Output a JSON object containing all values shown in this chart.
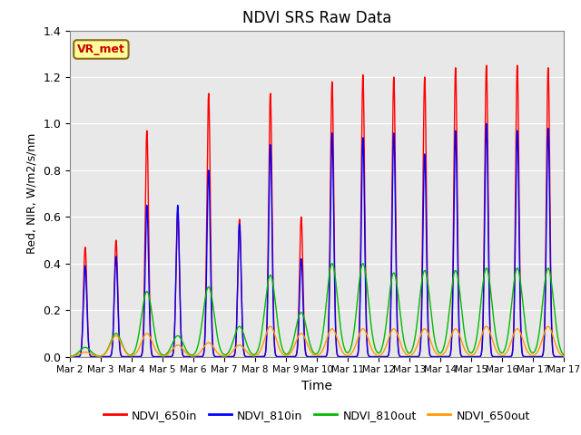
{
  "title": "NDVI SRS Raw Data",
  "xlabel": "Time",
  "ylabel": "Red, NIR, W/m2/s/nm",
  "ylim": [
    0,
    1.4
  ],
  "background_color": "#e8e8e8",
  "fig_bg_color": "#ffffff",
  "vr_met_label": "VR_met",
  "legend_labels": [
    "NDVI_650in",
    "NDVI_810in",
    "NDVI_810out",
    "NDVI_650out"
  ],
  "legend_colors": [
    "#ff0000",
    "#0000ff",
    "#00bb00",
    "#ff9900"
  ],
  "xtick_labels": [
    "Mar 2",
    "Mar 3",
    "Mar 4",
    "Mar 5",
    "Mar 6",
    "Mar 7",
    "Mar 8",
    "Mar 9",
    "Mar 10",
    "Mar 11",
    "Mar 12",
    "Mar 13",
    "Mar 14",
    "Mar 15",
    "Mar 16",
    "Mar 17"
  ],
  "day_peaks_650in": [
    0.47,
    0.5,
    0.97,
    0.62,
    1.13,
    0.59,
    1.13,
    0.6,
    1.18,
    1.21,
    1.2,
    1.2,
    1.24,
    1.25,
    1.25,
    1.24
  ],
  "day_peaks_810in": [
    0.39,
    0.43,
    0.65,
    0.65,
    0.8,
    0.57,
    0.91,
    0.42,
    0.96,
    0.94,
    0.96,
    0.87,
    0.97,
    1.0,
    0.97,
    0.98
  ],
  "day_peaks_810out": [
    0.04,
    0.1,
    0.28,
    0.09,
    0.3,
    0.13,
    0.35,
    0.19,
    0.4,
    0.4,
    0.36,
    0.37,
    0.37,
    0.38,
    0.38,
    0.38
  ],
  "day_peaks_650out": [
    0.02,
    0.09,
    0.1,
    0.05,
    0.06,
    0.05,
    0.13,
    0.1,
    0.12,
    0.12,
    0.12,
    0.12,
    0.12,
    0.13,
    0.12,
    0.13
  ],
  "sigma_in": 0.055,
  "sigma_out": 0.18,
  "num_days": 16,
  "pts_per_day": 500,
  "line_width": 1.0,
  "yticks": [
    0.0,
    0.2,
    0.4,
    0.6,
    0.8,
    1.0,
    1.2,
    1.4
  ]
}
